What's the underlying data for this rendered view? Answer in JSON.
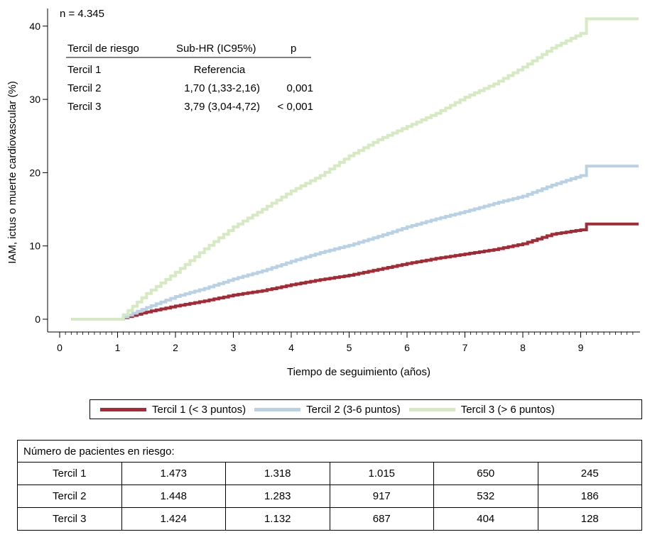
{
  "chart_data": {
    "type": "line",
    "step": true,
    "n_label": "n = 4.345",
    "xlabel": "Tiempo de seguimiento (años)",
    "ylabel": "IAM, ictus o muerte cardiovascular (%)",
    "xlim": [
      0,
      10
    ],
    "ylim": [
      0,
      42
    ],
    "xticks": [
      0,
      1,
      2,
      3,
      4,
      5,
      6,
      7,
      8,
      9
    ],
    "yticks": [
      0,
      10,
      20,
      30,
      40
    ],
    "grid": false,
    "series": [
      {
        "name": "Tercil 1 (< 3 puntos)",
        "color": "#a52a34",
        "x": [
          0.2,
          1.0,
          1.1,
          1.5,
          2.0,
          2.5,
          3.0,
          3.5,
          4.0,
          4.5,
          5.0,
          5.5,
          6.0,
          6.5,
          7.0,
          7.5,
          8.0,
          8.5,
          9.0,
          9.1,
          10.0
        ],
        "y": [
          0,
          0,
          0.2,
          1.0,
          1.8,
          2.5,
          3.3,
          3.9,
          4.7,
          5.4,
          6.0,
          6.8,
          7.6,
          8.3,
          8.9,
          9.5,
          10.3,
          11.6,
          12.2,
          13.0,
          13.0
        ]
      },
      {
        "name": "Tercil 2 (3-6 puntos)",
        "color": "#b9d1e4",
        "x": [
          0.2,
          1.0,
          1.1,
          1.5,
          2.0,
          2.5,
          3.0,
          3.5,
          4.0,
          4.5,
          5.0,
          5.5,
          6.0,
          6.5,
          7.0,
          7.5,
          8.0,
          8.5,
          9.0,
          9.1,
          10.0
        ],
        "y": [
          0,
          0,
          0.3,
          1.6,
          3.1,
          4.2,
          5.5,
          6.6,
          7.9,
          9.1,
          10.1,
          11.3,
          12.6,
          13.7,
          14.7,
          15.8,
          16.8,
          18.3,
          19.6,
          20.9,
          20.9
        ]
      },
      {
        "name": "Tercil 3 (> 6 puntos)",
        "color": "#d6eac2",
        "x": [
          0.2,
          1.0,
          1.1,
          1.5,
          2.0,
          2.5,
          3.0,
          3.5,
          4.0,
          4.5,
          5.0,
          5.5,
          6.0,
          6.5,
          7.0,
          7.5,
          8.0,
          8.5,
          9.0,
          9.1,
          10.0
        ],
        "y": [
          0,
          0,
          0.6,
          3.5,
          6.4,
          9.6,
          12.6,
          15.0,
          17.5,
          19.6,
          22.3,
          24.5,
          26.3,
          28.1,
          30.3,
          32.1,
          34.4,
          37.0,
          39.0,
          41.0,
          41.0
        ]
      }
    ],
    "table": {
      "header": [
        "Tercil de riesgo",
        "Sub-HR (IC95%)",
        "p"
      ],
      "rows": [
        [
          "Tercil 1",
          "Referencia",
          ""
        ],
        [
          "Tercil 2",
          "1,70 (1,33-2,16)",
          "0,001"
        ],
        [
          "Tercil 3",
          "3,79 (3,04-4,72)",
          "< 0,001"
        ]
      ]
    }
  },
  "legend": [
    {
      "label": "Tercil 1 (< 3 puntos)",
      "color": "#a52a34"
    },
    {
      "label": "Tercil 2 (3-6 puntos)",
      "color": "#b9d1e4"
    },
    {
      "label": "Tercil 3 (> 6 puntos)",
      "color": "#d6eac2"
    }
  ],
  "risk_table": {
    "title": "Número de pacientes en riesgo:",
    "rows": [
      {
        "label": "Tercil 1",
        "values": [
          "1.473",
          "1.318",
          "1.015",
          "650",
          "245"
        ]
      },
      {
        "label": "Tercil 2",
        "values": [
          "1.448",
          "1.283",
          "917",
          "532",
          "186"
        ]
      },
      {
        "label": "Tercil 3",
        "values": [
          "1.424",
          "1.132",
          "687",
          "404",
          "128"
        ]
      }
    ]
  }
}
